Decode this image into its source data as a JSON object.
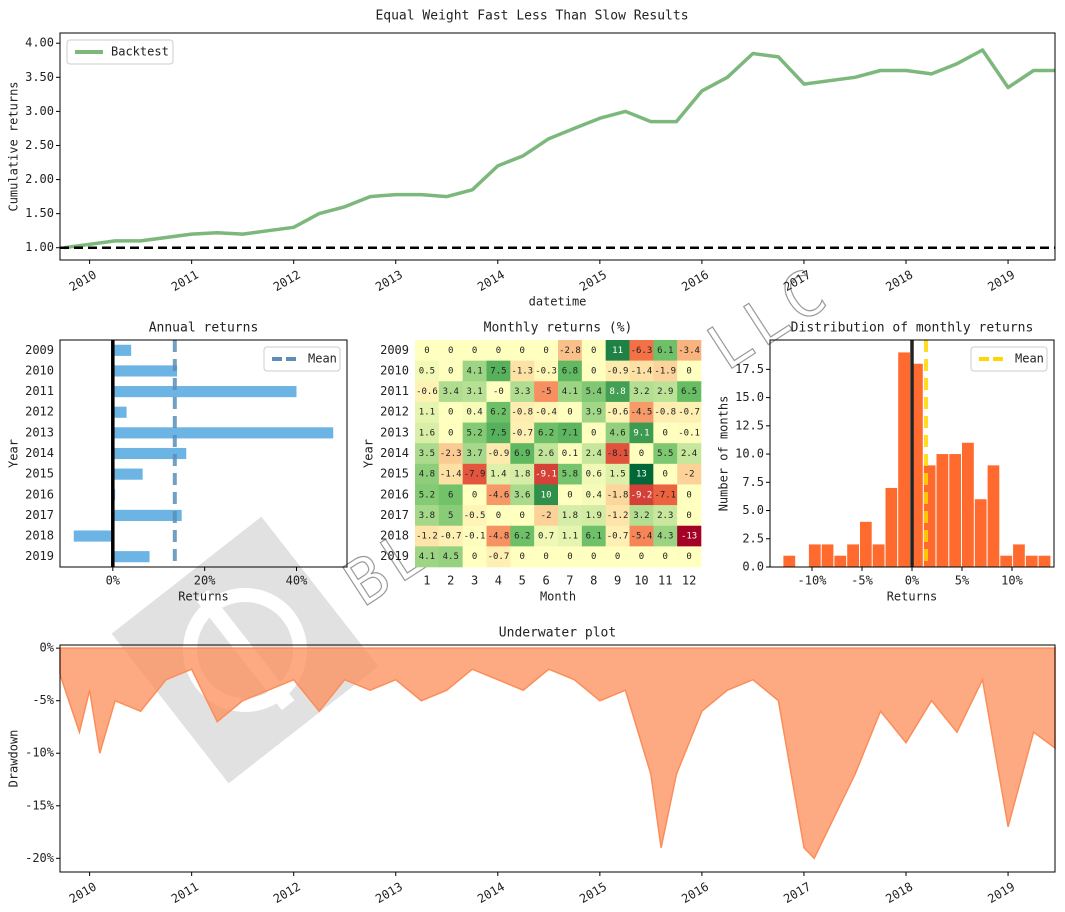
{
  "title": "Equal Weight Fast Less Than Slow Results",
  "watermark": "BLACKARBS LLC",
  "chart_data": [
    {
      "type": "line",
      "x": [
        2009.75,
        2010,
        2010.25,
        2010.5,
        2010.75,
        2011,
        2011.25,
        2011.5,
        2011.75,
        2012,
        2012.25,
        2012.5,
        2012.75,
        2013,
        2013.25,
        2013.5,
        2013.75,
        2014,
        2014.25,
        2014.5,
        2014.75,
        2015,
        2015.25,
        2015.5,
        2015.75,
        2016,
        2016.25,
        2016.5,
        2016.75,
        2017,
        2017.25,
        2017.5,
        2017.75,
        2018,
        2018.25,
        2018.5,
        2018.75,
        2019,
        2019.25,
        2019.46
      ],
      "series": [
        {
          "name": "Backtest",
          "color": "#7cb87c",
          "values": [
            1.0,
            1.05,
            1.1,
            1.1,
            1.15,
            1.2,
            1.22,
            1.2,
            1.25,
            1.3,
            1.5,
            1.6,
            1.75,
            1.78,
            1.78,
            1.75,
            1.85,
            2.2,
            2.35,
            2.6,
            2.75,
            2.9,
            3.0,
            2.85,
            2.85,
            3.3,
            3.5,
            3.85,
            3.8,
            3.4,
            3.45,
            3.5,
            3.6,
            3.6,
            3.55,
            3.7,
            3.9,
            3.35,
            3.6,
            3.6
          ]
        }
      ],
      "xlabel": "datetime",
      "ylabel": "Cumulative returns",
      "xlim": [
        2009.71,
        2019.46
      ],
      "xticks": [
        2010,
        2011,
        2012,
        2013,
        2014,
        2015,
        2016,
        2017,
        2018,
        2019
      ],
      "ylim": [
        0.82,
        4.15
      ],
      "yticks": [
        {
          "value": 1,
          "label": "1.00"
        },
        {
          "value": 1.5,
          "label": "1.50"
        },
        {
          "value": 2,
          "label": "2.00"
        },
        {
          "value": 2.5,
          "label": "2.50"
        },
        {
          "value": 3,
          "label": "3.00"
        },
        {
          "value": 3.5,
          "label": "3.50"
        },
        {
          "value": 4,
          "label": "4.00"
        }
      ],
      "hline": 1,
      "legend": "upper left"
    },
    {
      "type": "barh",
      "title": "Annual returns",
      "categories": [
        "2009",
        "2010",
        "2011",
        "2012",
        "2013",
        "2014",
        "2015",
        "2016",
        "2017",
        "2018",
        "2019"
      ],
      "values": [
        4,
        14,
        40,
        3,
        48,
        16,
        6.5,
        0.5,
        15,
        -8.5,
        8
      ],
      "color": "#6cb4e4",
      "xlabel": "Returns",
      "ylabel": "Year",
      "xlim": [
        -11.5,
        51
      ],
      "xticks": [
        {
          "value": 0,
          "label": "0%"
        },
        {
          "value": 20,
          "label": "20%"
        },
        {
          "value": 40,
          "label": "40%"
        }
      ],
      "zero_line": true,
      "mean": {
        "name": "Mean",
        "value": 13.5,
        "color": "#5b8fb9"
      },
      "legend": "upper right"
    },
    {
      "type": "heatmap",
      "title": "Monthly returns (%)",
      "x": [
        1,
        2,
        3,
        4,
        5,
        6,
        7,
        8,
        9,
        10,
        11,
        12
      ],
      "categories": [
        "2009",
        "2010",
        "2011",
        "2012",
        "2013",
        "2014",
        "2015",
        "2016",
        "2017",
        "2018",
        "2019"
      ],
      "values": [
        [
          0,
          0,
          0,
          0,
          0,
          0,
          -2.8,
          0,
          11,
          -6.3,
          6.1,
          -3.4
        ],
        [
          0.5,
          0,
          4.1,
          7.5,
          -1.3,
          -0.3,
          6.8,
          0,
          -0.9,
          -1.4,
          -1.9,
          0
        ],
        [
          -0.6,
          3.4,
          3.1,
          0,
          3.3,
          -5,
          4.1,
          5.4,
          8.8,
          3.2,
          2.9,
          6.5
        ],
        [
          1.1,
          0,
          0.4,
          6.2,
          -0.8,
          -0.4,
          0,
          3.9,
          -0.6,
          -4.5,
          -0.8,
          -0.7
        ],
        [
          1.6,
          0,
          5.2,
          7.5,
          -0.7,
          6.2,
          7.1,
          0,
          4.6,
          9.1,
          0,
          -0.1
        ],
        [
          3.5,
          -2.3,
          3.7,
          -0.9,
          6.9,
          2.6,
          0.1,
          2.4,
          -8.1,
          0,
          5.5,
          2.4
        ],
        [
          4.8,
          -1.4,
          -7.9,
          1.4,
          1.8,
          -9.1,
          5.8,
          0.6,
          1.5,
          13,
          0,
          -2
        ],
        [
          5.2,
          6,
          0,
          -4.6,
          3.6,
          10,
          0,
          0.4,
          -1.8,
          -9.2,
          -7.1,
          0
        ],
        [
          3.8,
          5,
          -0.5,
          0,
          0,
          -2,
          1.8,
          1.9,
          -1.2,
          3.2,
          2.3,
          0
        ],
        [
          -1.2,
          -0.7,
          -0.1,
          -4.8,
          6.2,
          0.7,
          1.1,
          6.1,
          -0.7,
          -5.4,
          4.3,
          -13
        ],
        [
          4.1,
          4.5,
          0,
          -0.7,
          0,
          0,
          0,
          0,
          0,
          0,
          0,
          0
        ]
      ],
      "value_labels": [
        [
          "0",
          "0",
          "0",
          "0",
          "0",
          "0",
          "-2.8",
          "0",
          "11",
          "-6.3",
          "6.1",
          "-3.4"
        ],
        [
          "0.5",
          "0",
          "4.1",
          "7.5",
          "-1.3",
          "-0.3",
          "6.8",
          "0",
          "-0.9",
          "-1.4",
          "-1.9",
          "0"
        ],
        [
          "-0.6",
          "3.4",
          "3.1",
          "-0",
          "3.3",
          "-5",
          "4.1",
          "5.4",
          "8.8",
          "3.2",
          "2.9",
          "6.5"
        ],
        [
          "1.1",
          "0",
          "0.4",
          "6.2",
          "-0.8",
          "-0.4",
          "0",
          "3.9",
          "-0.6",
          "-4.5",
          "-0.8",
          "-0.7"
        ],
        [
          "1.6",
          "0",
          "5.2",
          "7.5",
          "-0.7",
          "6.2",
          "7.1",
          "0",
          "4.6",
          "9.1",
          "0",
          "-0.1"
        ],
        [
          "3.5",
          "-2.3",
          "3.7",
          "-0.9",
          "6.9",
          "2.6",
          "0.1",
          "2.4",
          "-8.1",
          "0",
          "5.5",
          "2.4"
        ],
        [
          "4.8",
          "-1.4",
          "-7.9",
          "1.4",
          "1.8",
          "-9.1",
          "5.8",
          "0.6",
          "1.5",
          "13",
          "0",
          "-2"
        ],
        [
          "5.2",
          "6",
          "0",
          "-4.6",
          "3.6",
          "10",
          "0",
          "0.4",
          "-1.8",
          "-9.2",
          "-7.1",
          "0"
        ],
        [
          "3.8",
          "5",
          "-0.5",
          "0",
          "0",
          "-2",
          "1.8",
          "1.9",
          "-1.2",
          "3.2",
          "2.3",
          "0"
        ],
        [
          "-1.2",
          "-0.7",
          "-0.1",
          "-4.8",
          "6.2",
          "0.7",
          "1.1",
          "6.1",
          "-0.7",
          "-5.4",
          "4.3",
          "-13"
        ],
        [
          "4.1",
          "4.5",
          "0",
          "-0.7",
          "0",
          "0",
          "0",
          "0",
          "0",
          "0",
          "0",
          "0"
        ]
      ],
      "xlabel": "Month",
      "ylabel": "Year",
      "colormap": [
        "#a50026",
        "#f46d43",
        "#ffffbf",
        "#66bd63",
        "#006837"
      ]
    },
    {
      "type": "histogram",
      "title": "Distribution of monthly returns",
      "bins": [
        -12.86,
        -11.58,
        -10.31,
        -9.03,
        -7.76,
        -6.48,
        -5.2,
        -3.93,
        -2.65,
        -1.38,
        -0.1,
        1.18,
        2.45,
        3.73,
        5.0,
        6.28,
        7.56,
        8.83,
        10.11,
        11.38,
        12.66,
        13.94
      ],
      "values": [
        1,
        0,
        2,
        2,
        1,
        2,
        4,
        2,
        7,
        19,
        18,
        9,
        10,
        10,
        11,
        6,
        9,
        1,
        2,
        1,
        1
      ],
      "color": "#ff6a2e",
      "xlabel": "Returns",
      "ylabel": "Number of months",
      "xlim": [
        -14.2,
        14.2
      ],
      "xticks": [
        {
          "value": -10,
          "label": "-10%"
        },
        {
          "value": -5,
          "label": "-5%"
        },
        {
          "value": 0,
          "label": "0%"
        },
        {
          "value": 5,
          "label": "5%"
        },
        {
          "value": 10,
          "label": "10%"
        }
      ],
      "ylim": [
        0,
        20.1
      ],
      "yticks": [
        {
          "value": 0,
          "label": "0.0"
        },
        2.5,
        {
          "value": 5,
          "label": "5.0"
        },
        7.5,
        {
          "value": 10,
          "label": "10.0"
        },
        12.5,
        {
          "value": 15,
          "label": "15.0"
        },
        17.5
      ],
      "zero_line": true,
      "mean": {
        "name": "Mean",
        "value": 1.4,
        "color": "#ffd700"
      },
      "legend": "upper right"
    },
    {
      "type": "area",
      "title": "Underwater plot",
      "x": [
        2009.71,
        2009.9,
        2010,
        2010.1,
        2010.25,
        2010.5,
        2010.75,
        2011,
        2011.25,
        2011.5,
        2011.75,
        2012,
        2012.25,
        2012.5,
        2012.75,
        2013,
        2013.25,
        2013.5,
        2013.75,
        2014,
        2014.25,
        2014.5,
        2014.75,
        2015,
        2015.25,
        2015.5,
        2015.6,
        2015.75,
        2016,
        2016.25,
        2016.5,
        2016.75,
        2017,
        2017.1,
        2017.25,
        2017.5,
        2017.75,
        2018,
        2018.25,
        2018.5,
        2018.75,
        2019,
        2019.25,
        2019.46
      ],
      "values": [
        -2.5,
        -8,
        -4,
        -10,
        -5,
        -6,
        -3,
        -2,
        -7,
        -5,
        -4,
        -3,
        -6,
        -3,
        -4,
        -3,
        -5,
        -4,
        -2,
        -3,
        -4,
        -2,
        -3,
        -5,
        -4,
        -12,
        -19,
        -12,
        -6,
        -4,
        -3,
        -5,
        -19,
        -20,
        -17,
        -12,
        -6,
        -9,
        -5,
        -8,
        -3,
        -17,
        -8,
        -9.5
      ],
      "color": "#fc8d59",
      "ylabel": "Drawdown",
      "xlim": [
        2009.71,
        2019.46
      ],
      "xticks": [
        2010,
        2011,
        2012,
        2013,
        2014,
        2015,
        2016,
        2017,
        2018,
        2019
      ],
      "ylim": [
        -21.3,
        0.3
      ],
      "yticks": [
        {
          "value": 0,
          "label": "0%"
        },
        {
          "value": -5,
          "label": "-5%"
        },
        {
          "value": -10,
          "label": "-10%"
        },
        {
          "value": -15,
          "label": "-15%"
        },
        {
          "value": -20,
          "label": "-20%"
        }
      ]
    }
  ]
}
